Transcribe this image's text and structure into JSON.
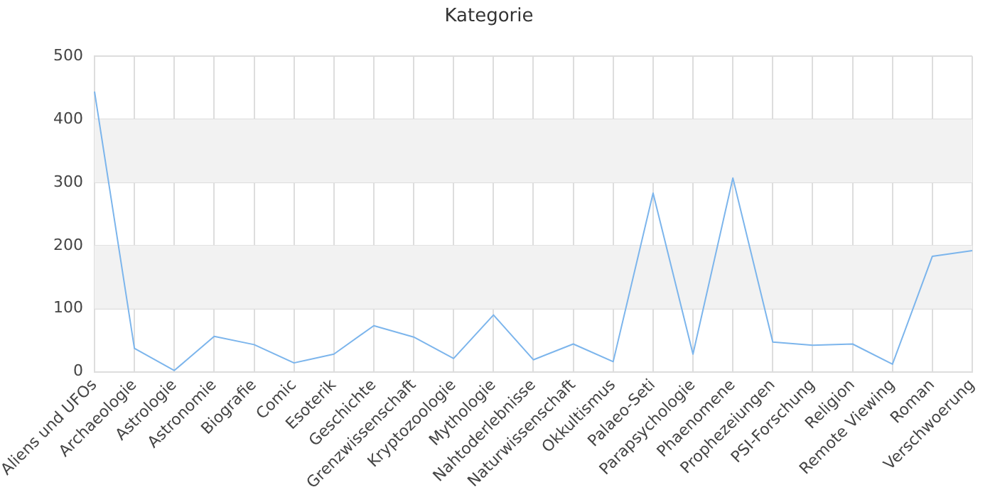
{
  "chart_data": {
    "type": "line",
    "title": "Kategorie",
    "categories": [
      "Aliens und UFOs",
      "Archaeologie",
      "Astrologie",
      "Astronomie",
      "Biografie",
      "Comic",
      "Esoterik",
      "Geschichte",
      "Grenzwissenschaft",
      "Kryptozoologie",
      "Mythologie",
      "Nahtoderlebnisse",
      "Naturwissenschaft",
      "Okkultismus",
      "Palaeo-Seti",
      "Parapsychologie",
      "Phaenomene",
      "Prophezeiungen",
      "PSI-Forschung",
      "Religion",
      "Remote Viewing",
      "Roman",
      "Verschwoerung"
    ],
    "series": [
      {
        "color": "#7cb5ec",
        "values": [
          444,
          37,
          2,
          56,
          43,
          14,
          28,
          73,
          55,
          21,
          90,
          19,
          44,
          16,
          283,
          28,
          307,
          47,
          42,
          44,
          12,
          183,
          192
        ]
      }
    ],
    "ylim": [
      0,
      500
    ],
    "yticks": [
      0,
      100,
      200,
      300,
      400,
      500
    ],
    "grid": true,
    "legend": false,
    "marker": "none",
    "line_style": "solid",
    "bands": [
      {
        "axis": "y",
        "from": 100,
        "to": 200,
        "color": "#f2f2f2"
      },
      {
        "axis": "y",
        "from": 300,
        "to": 400,
        "color": "#f2f2f2"
      }
    ]
  }
}
